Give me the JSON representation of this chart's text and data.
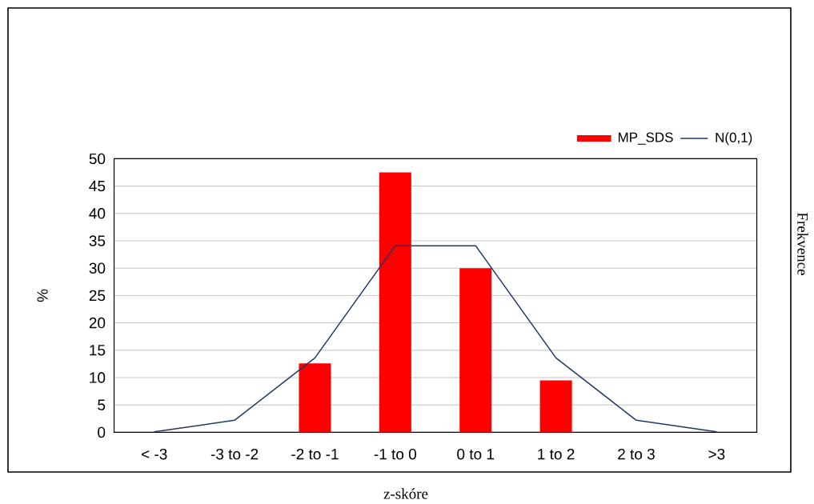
{
  "chart_data": {
    "type": "bar",
    "categories": [
      "< -3",
      "-3 to -2",
      "-2 to -1",
      "-1 to 0",
      "0 to 1",
      "1 to 2",
      "2 to 3",
      ">3"
    ],
    "series": [
      {
        "name": "MP_SDS",
        "color": "#ff0000",
        "values": [
          0,
          0,
          12.6,
          47.5,
          30.0,
          9.5,
          0,
          0
        ]
      },
      {
        "name": "N(0,1)",
        "type": "line",
        "color": "#1f3864",
        "values": [
          0.1,
          2.2,
          13.6,
          34.1,
          34.1,
          13.6,
          2.2,
          0.1
        ]
      }
    ],
    "ylim": [
      0,
      50
    ],
    "yticks": [
      0,
      5,
      10,
      15,
      20,
      25,
      30,
      35,
      40,
      45,
      50
    ],
    "ylabel": "%",
    "xlabel": "z-skóre",
    "annotations": [
      "Frekvence"
    ],
    "grid": "y",
    "legend": "top right"
  }
}
